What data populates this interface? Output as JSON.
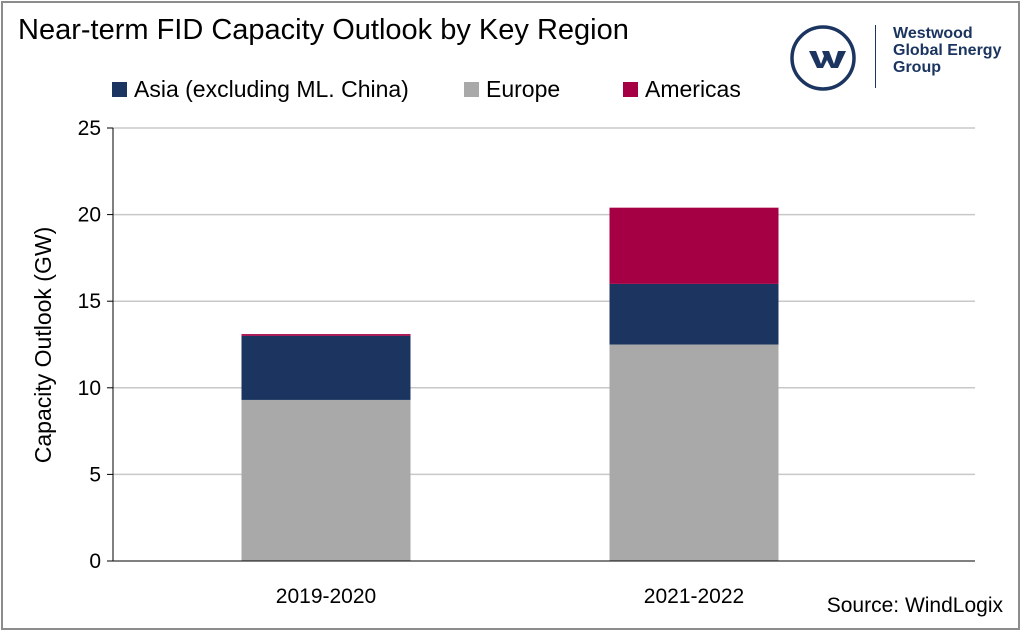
{
  "chart_data": {
    "type": "bar",
    "stacked": true,
    "title": "Near-term FID Capacity Outlook by Key Region",
    "xlabel": "",
    "ylabel": "Capacity Outlook (GW)",
    "ylim": [
      0,
      25
    ],
    "yticks": [
      0,
      5,
      10,
      15,
      20,
      25
    ],
    "grid": true,
    "legend_position": "top",
    "categories": [
      "2019-2020",
      "2021-2022"
    ],
    "series": [
      {
        "name": "Europe",
        "values": [
          9.3,
          12.5
        ],
        "color": "#a9a9a9"
      },
      {
        "name": "Asia (excluding ML. China)",
        "values": [
          3.7,
          3.5
        ],
        "color": "#1b3560"
      },
      {
        "name": "Americas",
        "values": [
          0.1,
          4.4
        ],
        "color": "#a50044"
      }
    ],
    "legend_order": [
      "Asia (excluding ML. China)",
      "Europe",
      "Americas"
    ],
    "source": "Source: WindLogix"
  },
  "logo": {
    "text_lines": [
      "Westwood",
      "Global Energy",
      "Group"
    ],
    "color": "#1b3560"
  }
}
